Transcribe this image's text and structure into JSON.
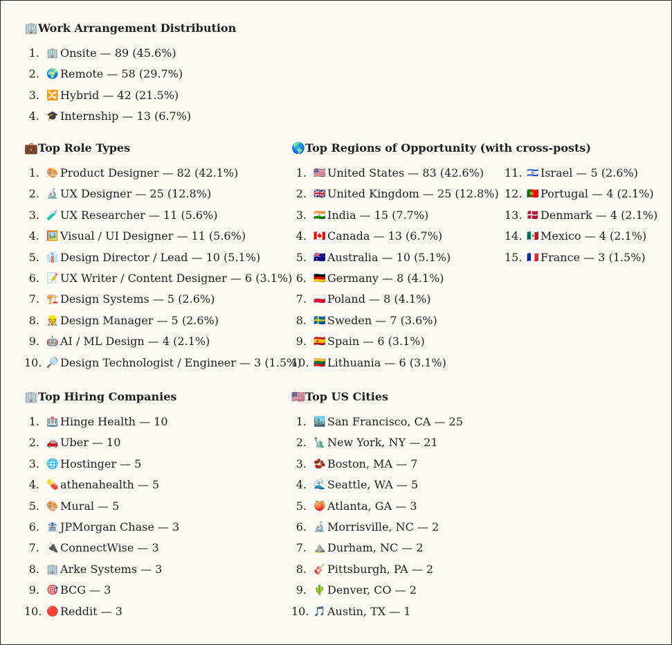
{
  "work": {
    "icon": "🏢",
    "title": "Work Arrangement Distribution",
    "items": [
      {
        "n": "1.",
        "icon": "🏢",
        "text": "Onsite — 89 (45.6%)"
      },
      {
        "n": "2.",
        "icon": "🌍",
        "text": "Remote — 58 (29.7%)"
      },
      {
        "n": "3.",
        "icon": "🔀",
        "text": "Hybrid — 42 (21.5%)"
      },
      {
        "n": "4.",
        "icon": "🎓",
        "text": "Internship — 13 (6.7%)"
      }
    ]
  },
  "roles": {
    "icon": "💼",
    "title": "Top Role Types",
    "items": [
      {
        "n": "1.",
        "icon": "🎨",
        "text": "Product Designer — 82 (42.1%)"
      },
      {
        "n": "2.",
        "icon": "🔬",
        "text": "UX Designer — 25 (12.8%)"
      },
      {
        "n": "3.",
        "icon": "🧪",
        "text": "UX Researcher — 11 (5.6%)"
      },
      {
        "n": "4.",
        "icon": "🖼️",
        "text": "Visual / UI Designer — 11 (5.6%)"
      },
      {
        "n": "5.",
        "icon": "👔",
        "text": "Design Director / Lead — 10 (5.1%)"
      },
      {
        "n": "6.",
        "icon": "📝",
        "text": "UX Writer / Content Designer — 6 (3.1%)"
      },
      {
        "n": "7.",
        "icon": "🏗️",
        "text": "Design Systems — 5 (2.6%)"
      },
      {
        "n": "8.",
        "icon": "👷",
        "text": "Design Manager — 5 (2.6%)"
      },
      {
        "n": "9.",
        "icon": "🤖",
        "text": "AI / ML Design — 4 (2.1%)"
      },
      {
        "n": "10.",
        "icon": "🔎",
        "text": "Design Technologist / Engineer — 3 (1.5%)"
      }
    ]
  },
  "regions": {
    "icon": "🌎",
    "title": "Top Regions of Opportunity (with cross-posts)",
    "items": [
      {
        "n": "1.",
        "icon": "🇺🇸",
        "text": "United States — 83 (42.6%)"
      },
      {
        "n": "2.",
        "icon": "🇬🇧",
        "text": "United Kingdom — 25 (12.8%)"
      },
      {
        "n": "3.",
        "icon": "🇮🇳",
        "text": "India — 15 (7.7%)"
      },
      {
        "n": "4.",
        "icon": "🇨🇦",
        "text": "Canada — 13 (6.7%)"
      },
      {
        "n": "5.",
        "icon": "🇦🇺",
        "text": "Australia — 10 (5.1%)"
      },
      {
        "n": "6.",
        "icon": "🇩🇪",
        "text": "Germany — 8 (4.1%)"
      },
      {
        "n": "7.",
        "icon": "🇵🇱",
        "text": "Poland — 8 (4.1%)"
      },
      {
        "n": "8.",
        "icon": "🇸🇪",
        "text": "Sweden — 7 (3.6%)"
      },
      {
        "n": "9.",
        "icon": "🇪🇸",
        "text": "Spain — 6 (3.1%)"
      },
      {
        "n": "10.",
        "icon": "🇱🇹",
        "text": "Lithuania — 6 (3.1%)"
      },
      {
        "n": "11.",
        "icon": "🇮🇱",
        "text": "Israel — 5 (2.6%)"
      },
      {
        "n": "12.",
        "icon": "🇵🇹",
        "text": "Portugal — 4 (2.1%)"
      },
      {
        "n": "13.",
        "icon": "🇩🇰",
        "text": "Denmark — 4 (2.1%)"
      },
      {
        "n": "14.",
        "icon": "🇲🇽",
        "text": "Mexico — 4 (2.1%)"
      },
      {
        "n": "15.",
        "icon": "🇫🇷",
        "text": "France — 3 (1.5%)"
      }
    ]
  },
  "companies": {
    "icon": "🏢",
    "title": "Top Hiring Companies",
    "items": [
      {
        "n": "1.",
        "icon": "🏥",
        "text": "Hinge Health — 10"
      },
      {
        "n": "2.",
        "icon": "🚗",
        "text": "Uber — 10"
      },
      {
        "n": "3.",
        "icon": "🌐",
        "text": "Hostinger — 5"
      },
      {
        "n": "4.",
        "icon": "💊",
        "text": "athenahealth — 5"
      },
      {
        "n": "5.",
        "icon": "🎨",
        "text": "Mural — 5"
      },
      {
        "n": "6.",
        "icon": "🏦",
        "text": "JPMorgan Chase — 3"
      },
      {
        "n": "7.",
        "icon": "🔌",
        "text": "ConnectWise — 3"
      },
      {
        "n": "8.",
        "icon": "🏢",
        "text": "Arke Systems — 3"
      },
      {
        "n": "9.",
        "icon": "🎯",
        "text": "BCG — 3"
      },
      {
        "n": "10.",
        "icon": "🔴",
        "text": "Reddit — 3"
      }
    ]
  },
  "cities": {
    "icon": "🇺🇸",
    "title": "Top US Cities",
    "items": [
      {
        "n": "1.",
        "icon": "🏙️",
        "text": "San Francisco, CA — 25"
      },
      {
        "n": "2.",
        "icon": "🗽",
        "text": "New York, NY — 21"
      },
      {
        "n": "3.",
        "icon": "🫘",
        "text": "Boston, MA — 7"
      },
      {
        "n": "4.",
        "icon": "🌊",
        "text": "Seattle, WA — 5"
      },
      {
        "n": "5.",
        "icon": "🍑",
        "text": "Atlanta, GA — 3"
      },
      {
        "n": "6.",
        "icon": "🔬",
        "text": "Morrisville, NC — 2"
      },
      {
        "n": "7.",
        "icon": "⛰️",
        "text": "Durham, NC — 2"
      },
      {
        "n": "8.",
        "icon": "🎸",
        "text": "Pittsburgh, PA — 2"
      },
      {
        "n": "9.",
        "icon": "🌵",
        "text": "Denver, CO — 2"
      },
      {
        "n": "10.",
        "icon": "🎵",
        "text": "Austin, TX — 1"
      }
    ]
  }
}
